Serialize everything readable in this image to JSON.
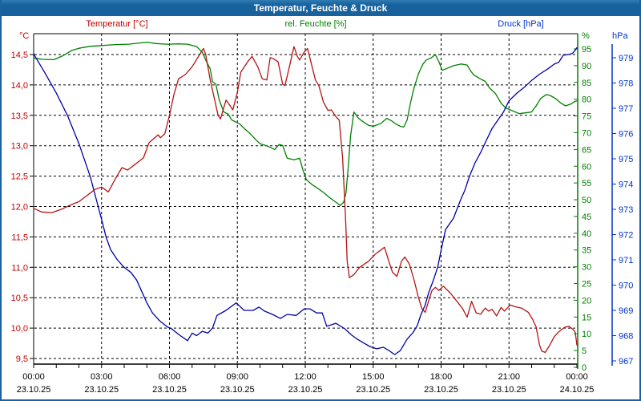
{
  "window": {
    "title": "Temperatur, Feuchte & Druck"
  },
  "chart_data": {
    "type": "line",
    "title": "Temperatur, Feuchte & Druck",
    "grid": true,
    "x_axis": {
      "range_hours": [
        0,
        24
      ],
      "minor_tick_hours": 1,
      "label_interval_hours": 3,
      "time_labels": [
        "00:00",
        "03:00",
        "06:00",
        "09:00",
        "12:00",
        "15:00",
        "18:00",
        "21:00",
        "00:00"
      ],
      "date_labels": [
        "23.10.25",
        "23.10.25",
        "23.10.25",
        "23.10.25",
        "23.10.25",
        "23.10.25",
        "23.10.25",
        "23.10.25",
        "24.10.25"
      ]
    },
    "axes": {
      "temperature": {
        "label": "Temperatur [°C]",
        "unit": "°C",
        "color": "#c00000",
        "min": 9.5,
        "max": 14.5,
        "tick_step": 0.5,
        "side": "left",
        "decimal_comma": true
      },
      "humidity": {
        "label": "rel. Feuchte [%]",
        "unit": "%",
        "color": "#008000",
        "min": 0,
        "max": 95,
        "tick_step": 5,
        "side": "right"
      },
      "pressure": {
        "label": "Druck [hPa]",
        "unit": "hPa",
        "color": "#0033cc",
        "min": 967,
        "max": 979,
        "tick_step": 1,
        "side": "far_right"
      }
    },
    "series": [
      {
        "name": "rel. Feuchte",
        "axis": "humidity",
        "color": "#008000",
        "points": [
          [
            0,
            92.3
          ],
          [
            0.4,
            91.9
          ],
          [
            0.9,
            91.8
          ],
          [
            1.3,
            93
          ],
          [
            1.7,
            94.6
          ],
          [
            2,
            95.2
          ],
          [
            2.5,
            95.8
          ],
          [
            3,
            96
          ],
          [
            3.6,
            96.3
          ],
          [
            4.2,
            96.4
          ],
          [
            5,
            97
          ],
          [
            5.4,
            96.6
          ],
          [
            5.9,
            96.4
          ],
          [
            6.4,
            96.5
          ],
          [
            6.8,
            96.4
          ],
          [
            7.2,
            95.7
          ],
          [
            7.45,
            94
          ],
          [
            7.6,
            91.7
          ],
          [
            7.8,
            89
          ],
          [
            7.9,
            85.2
          ],
          [
            8.05,
            84.5
          ],
          [
            8.2,
            79.8
          ],
          [
            8.4,
            76.2
          ],
          [
            8.6,
            75.5
          ],
          [
            8.75,
            73.8
          ],
          [
            9.1,
            72.6
          ],
          [
            9.35,
            71
          ],
          [
            9.55,
            69.8
          ],
          [
            9.8,
            68
          ],
          [
            10,
            66.7
          ],
          [
            10.25,
            66.2
          ],
          [
            10.5,
            65.5
          ],
          [
            10.65,
            65
          ],
          [
            10.85,
            66.5
          ],
          [
            11,
            66.2
          ],
          [
            11.2,
            62.4
          ],
          [
            11.5,
            61.9
          ],
          [
            11.75,
            62.4
          ],
          [
            11.9,
            58.8
          ],
          [
            12.05,
            56
          ],
          [
            12.3,
            54.5
          ],
          [
            12.55,
            53.4
          ],
          [
            12.8,
            52.2
          ],
          [
            13.1,
            50.5
          ],
          [
            13.35,
            49.3
          ],
          [
            13.55,
            48.3
          ],
          [
            13.7,
            49.3
          ],
          [
            13.8,
            52
          ],
          [
            13.9,
            60
          ],
          [
            14,
            69
          ],
          [
            14.15,
            76.2
          ],
          [
            14.35,
            74.3
          ],
          [
            14.55,
            73.3
          ],
          [
            14.8,
            72.2
          ],
          [
            15,
            71.9
          ],
          [
            15.35,
            72.8
          ],
          [
            15.6,
            74.3
          ],
          [
            15.8,
            73.6
          ],
          [
            16,
            72.6
          ],
          [
            16.2,
            71.9
          ],
          [
            16.35,
            71.7
          ],
          [
            16.5,
            73.8
          ],
          [
            16.65,
            79
          ],
          [
            16.8,
            83.3
          ],
          [
            17,
            87.6
          ],
          [
            17.2,
            90.5
          ],
          [
            17.35,
            91.7
          ],
          [
            17.55,
            92.3
          ],
          [
            17.75,
            93.3
          ],
          [
            17.9,
            91.2
          ],
          [
            18.05,
            88.6
          ],
          [
            18.3,
            89.3
          ],
          [
            18.55,
            90
          ],
          [
            18.9,
            90.5
          ],
          [
            19.15,
            90.2
          ],
          [
            19.3,
            88.5
          ],
          [
            19.45,
            87.2
          ],
          [
            19.7,
            86.2
          ],
          [
            19.95,
            85.3
          ],
          [
            20.15,
            83.3
          ],
          [
            20.4,
            81.7
          ],
          [
            20.65,
            78.8
          ],
          [
            20.85,
            77.4
          ],
          [
            21.1,
            76.7
          ],
          [
            21.45,
            75.7
          ],
          [
            21.7,
            75.9
          ],
          [
            22,
            76.2
          ],
          [
            22.2,
            78
          ],
          [
            22.4,
            80.2
          ],
          [
            22.65,
            81.4
          ],
          [
            22.85,
            81
          ],
          [
            23.05,
            80.2
          ],
          [
            23.3,
            78.8
          ],
          [
            23.5,
            78
          ],
          [
            23.75,
            78.6
          ],
          [
            23.9,
            79.3
          ],
          [
            24,
            79.5
          ]
        ]
      },
      {
        "name": "Druck",
        "axis": "pressure",
        "color": "#0000a8",
        "points": [
          [
            0,
            979.15
          ],
          [
            0.5,
            978.4
          ],
          [
            1,
            977.6
          ],
          [
            1.5,
            976.7
          ],
          [
            2,
            975.6
          ],
          [
            2.5,
            974.3
          ],
          [
            3,
            972.6
          ],
          [
            3.2,
            971.9
          ],
          [
            3.4,
            971.4
          ],
          [
            3.7,
            971
          ],
          [
            4,
            970.7
          ],
          [
            4.3,
            970.5
          ],
          [
            4.55,
            970.2
          ],
          [
            4.75,
            969.8
          ],
          [
            5,
            969.3
          ],
          [
            5.25,
            968.9
          ],
          [
            5.55,
            968.6
          ],
          [
            5.9,
            968.35
          ],
          [
            6.1,
            968.27
          ],
          [
            6.4,
            968.05
          ],
          [
            6.8,
            967.8
          ],
          [
            7,
            968.1
          ],
          [
            7.2,
            968
          ],
          [
            7.45,
            968.17
          ],
          [
            7.7,
            968.1
          ],
          [
            7.9,
            968.3
          ],
          [
            8.1,
            968.8
          ],
          [
            8.5,
            969
          ],
          [
            8.95,
            969.3
          ],
          [
            9.3,
            969
          ],
          [
            9.7,
            969
          ],
          [
            9.95,
            969.13
          ],
          [
            10.2,
            968.97
          ],
          [
            10.55,
            968.84
          ],
          [
            10.9,
            968.68
          ],
          [
            11.2,
            968.84
          ],
          [
            11.6,
            968.8
          ],
          [
            11.95,
            969.06
          ],
          [
            12.2,
            969.06
          ],
          [
            12.5,
            968.9
          ],
          [
            12.75,
            968.9
          ],
          [
            12.95,
            968.37
          ],
          [
            13.15,
            968.43
          ],
          [
            13.35,
            968.49
          ],
          [
            13.75,
            968.27
          ],
          [
            14.05,
            968.02
          ],
          [
            14.3,
            967.86
          ],
          [
            14.6,
            967.7
          ],
          [
            14.85,
            967.57
          ],
          [
            15.15,
            967.48
          ],
          [
            15.45,
            967.54
          ],
          [
            15.7,
            967.41
          ],
          [
            15.95,
            967.25
          ],
          [
            16.2,
            967.41
          ],
          [
            16.5,
            967.86
          ],
          [
            16.75,
            968.11
          ],
          [
            16.95,
            968.4
          ],
          [
            17.1,
            968.81
          ],
          [
            17.3,
            969.22
          ],
          [
            17.45,
            969.7
          ],
          [
            17.65,
            970.17
          ],
          [
            17.85,
            970.71
          ],
          [
            18,
            971.38
          ],
          [
            18.2,
            972.2
          ],
          [
            18.55,
            972.65
          ],
          [
            18.85,
            973.35
          ],
          [
            19.05,
            973.76
          ],
          [
            19.25,
            974.3
          ],
          [
            19.5,
            974.84
          ],
          [
            19.75,
            975.25
          ],
          [
            20,
            975.73
          ],
          [
            20.25,
            976.2
          ],
          [
            20.5,
            976.52
          ],
          [
            20.75,
            976.84
          ],
          [
            21,
            977.3
          ],
          [
            21.35,
            977.6
          ],
          [
            21.7,
            977.85
          ],
          [
            22,
            978.1
          ],
          [
            22.35,
            978.35
          ],
          [
            22.7,
            978.55
          ],
          [
            23,
            978.75
          ],
          [
            23.2,
            978.82
          ],
          [
            23.4,
            979.1
          ],
          [
            23.65,
            979.13
          ],
          [
            23.8,
            979.17
          ],
          [
            23.93,
            979.3
          ],
          [
            24,
            979.4
          ]
        ]
      },
      {
        "name": "Temperatur",
        "axis": "temperature",
        "color": "#b41414",
        "points": [
          [
            0,
            11.97
          ],
          [
            0.35,
            11.91
          ],
          [
            0.8,
            11.9
          ],
          [
            1.2,
            11.95
          ],
          [
            1.6,
            12.02
          ],
          [
            2,
            12.08
          ],
          [
            2.35,
            12.18
          ],
          [
            2.7,
            12.28
          ],
          [
            3,
            12.32
          ],
          [
            3.3,
            12.24
          ],
          [
            3.6,
            12.45
          ],
          [
            3.9,
            12.64
          ],
          [
            4.15,
            12.6
          ],
          [
            4.4,
            12.67
          ],
          [
            4.85,
            12.8
          ],
          [
            5.1,
            13.05
          ],
          [
            5.5,
            13.18
          ],
          [
            5.6,
            13.13
          ],
          [
            5.8,
            13.2
          ],
          [
            6,
            13.5
          ],
          [
            6.2,
            13.85
          ],
          [
            6.4,
            14.1
          ],
          [
            6.7,
            14.17
          ],
          [
            7,
            14.3
          ],
          [
            7.5,
            14.6
          ],
          [
            7.6,
            14.5
          ],
          [
            7.8,
            14.08
          ],
          [
            8.15,
            13.5
          ],
          [
            8.25,
            13.44
          ],
          [
            8.5,
            13.75
          ],
          [
            8.6,
            13.7
          ],
          [
            8.8,
            13.59
          ],
          [
            9,
            13.88
          ],
          [
            9.15,
            14.21
          ],
          [
            9.45,
            14.38
          ],
          [
            9.65,
            14.47
          ],
          [
            9.9,
            14.3
          ],
          [
            10.1,
            14.1
          ],
          [
            10.3,
            14.08
          ],
          [
            10.45,
            14.45
          ],
          [
            10.6,
            14.43
          ],
          [
            10.8,
            14.38
          ],
          [
            11,
            14.01
          ],
          [
            11.1,
            13.99
          ],
          [
            11.3,
            14.3
          ],
          [
            11.45,
            14.55
          ],
          [
            11.5,
            14.63
          ],
          [
            11.65,
            14.47
          ],
          [
            11.75,
            14.41
          ],
          [
            11.95,
            14.54
          ],
          [
            12.1,
            14.6
          ],
          [
            12.3,
            14.3
          ],
          [
            12.45,
            14.08
          ],
          [
            12.6,
            13.99
          ],
          [
            12.8,
            13.72
          ],
          [
            13,
            13.58
          ],
          [
            13.15,
            13.59
          ],
          [
            13.35,
            13.48
          ],
          [
            13.5,
            13.42
          ],
          [
            13.65,
            12.8
          ],
          [
            13.78,
            11.8
          ],
          [
            13.85,
            11.1
          ],
          [
            13.95,
            10.83
          ],
          [
            14.15,
            10.88
          ],
          [
            14.4,
            11
          ],
          [
            14.8,
            11.1
          ],
          [
            15.1,
            11.22
          ],
          [
            15.5,
            11.33
          ],
          [
            15.65,
            11.15
          ],
          [
            15.85,
            10.92
          ],
          [
            16.05,
            10.85
          ],
          [
            16.25,
            11.1
          ],
          [
            16.4,
            11.17
          ],
          [
            16.6,
            11.05
          ],
          [
            16.8,
            10.8
          ],
          [
            17,
            10.5
          ],
          [
            17.15,
            10.32
          ],
          [
            17.3,
            10.26
          ],
          [
            17.45,
            10.45
          ],
          [
            17.6,
            10.62
          ],
          [
            17.75,
            10.67
          ],
          [
            17.9,
            10.62
          ],
          [
            18.1,
            10.69
          ],
          [
            18.4,
            10.58
          ],
          [
            18.7,
            10.44
          ],
          [
            18.95,
            10.32
          ],
          [
            19.15,
            10.18
          ],
          [
            19.35,
            10.44
          ],
          [
            19.55,
            10.25
          ],
          [
            19.75,
            10.23
          ],
          [
            19.95,
            10.33
          ],
          [
            20.1,
            10.28
          ],
          [
            20.25,
            10.31
          ],
          [
            20.45,
            10.2
          ],
          [
            20.65,
            10.34
          ],
          [
            20.8,
            10.28
          ],
          [
            21.05,
            10.38
          ],
          [
            21.3,
            10.35
          ],
          [
            21.55,
            10.33
          ],
          [
            21.85,
            10.26
          ],
          [
            22.05,
            10.14
          ],
          [
            22.2,
            10.02
          ],
          [
            22.35,
            9.72
          ],
          [
            22.45,
            9.62
          ],
          [
            22.6,
            9.6
          ],
          [
            22.8,
            9.72
          ],
          [
            23,
            9.86
          ],
          [
            23.2,
            9.94
          ],
          [
            23.45,
            10.01
          ],
          [
            23.65,
            10.03
          ],
          [
            23.85,
            9.97
          ],
          [
            23.93,
            9.93
          ],
          [
            24,
            9.72
          ]
        ]
      }
    ]
  }
}
